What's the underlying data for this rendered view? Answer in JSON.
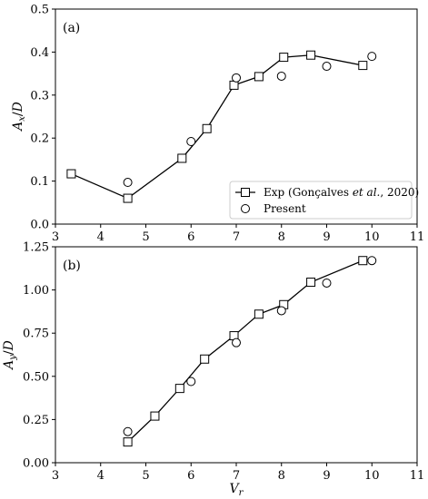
{
  "chart_data": [
    {
      "type": "line",
      "panel_label": "(a)",
      "xlabel": "",
      "ylabel": "A_x/D",
      "xlim": [
        3,
        11
      ],
      "ylim": [
        0.0,
        0.5
      ],
      "xticks": [
        3,
        4,
        5,
        6,
        7,
        8,
        9,
        10,
        11
      ],
      "yticks": [
        "0.0",
        "0.1",
        "0.2",
        "0.3",
        "0.4",
        "0.5"
      ],
      "grid": false,
      "legend": {
        "placement": "lower-right",
        "entries": [
          {
            "label_pre": "Exp (Gonçalves ",
            "label_em": "et al.",
            "label_post": ", 2020)",
            "marker": "square",
            "line": true
          },
          {
            "label": "Present",
            "marker": "circle",
            "line": false
          }
        ]
      },
      "series": [
        {
          "name": "Exp (Gonçalves et al., 2020)",
          "marker": "square",
          "line": true,
          "x": [
            3.35,
            4.6,
            5.8,
            6.35,
            6.95,
            7.5,
            8.05,
            8.65,
            9.8
          ],
          "y": [
            0.117,
            0.06,
            0.153,
            0.222,
            0.323,
            0.343,
            0.388,
            0.393,
            0.369
          ]
        },
        {
          "name": "Present",
          "marker": "circle",
          "line": false,
          "x": [
            4.6,
            6.0,
            7.0,
            8.0,
            9.0,
            10.0
          ],
          "y": [
            0.097,
            0.192,
            0.34,
            0.344,
            0.367,
            0.39
          ]
        }
      ]
    },
    {
      "type": "line",
      "panel_label": "(b)",
      "xlabel": "V_r",
      "ylabel": "A_y/D",
      "xlim": [
        3,
        11
      ],
      "ylim": [
        0.0,
        1.25
      ],
      "xticks": [
        3,
        4,
        5,
        6,
        7,
        8,
        9,
        10,
        11
      ],
      "yticks": [
        "0.00",
        "0.25",
        "0.50",
        "0.75",
        "1.00",
        "1.25"
      ],
      "grid": false,
      "series": [
        {
          "name": "Exp (Gonçalves et al., 2020)",
          "marker": "square",
          "line": true,
          "x": [
            4.6,
            5.2,
            5.75,
            6.3,
            6.95,
            7.5,
            8.05,
            8.65,
            9.8
          ],
          "y": [
            0.12,
            0.27,
            0.43,
            0.6,
            0.735,
            0.86,
            0.915,
            1.045,
            1.17
          ]
        },
        {
          "name": "Present",
          "marker": "circle",
          "line": false,
          "x": [
            4.6,
            6.0,
            7.0,
            8.0,
            9.0,
            10.0
          ],
          "y": [
            0.18,
            0.47,
            0.695,
            0.88,
            1.04,
            1.17
          ]
        }
      ]
    }
  ]
}
